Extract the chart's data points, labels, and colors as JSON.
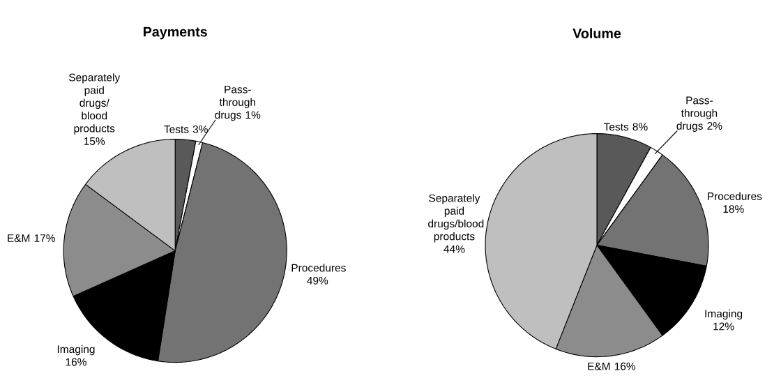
{
  "chart_data": [
    {
      "type": "pie",
      "title": "Payments",
      "categories": [
        "Tests",
        "Pass-through drugs",
        "Procedures",
        "Imaging",
        "E&M",
        "Separately paid drugs/ blood products"
      ],
      "values": [
        3,
        1,
        49,
        16,
        17,
        15
      ],
      "value_labels": [
        "3%",
        "1%",
        "49%",
        "16%",
        "17%",
        "15%"
      ],
      "colors": [
        "#595959",
        "#ffffff",
        "#737373",
        "#000000",
        "#8c8c8c",
        "#bfbfbf"
      ]
    },
    {
      "type": "pie",
      "title": "Volume",
      "categories": [
        "Tests",
        "Pass-through drugs",
        "Procedures",
        "Imaging",
        "E&M",
        "Separately paid drugs/blood products"
      ],
      "values": [
        8,
        2,
        18,
        12,
        16,
        44
      ],
      "value_labels": [
        "8%",
        "2%",
        "18%",
        "12%",
        "16%",
        "44%"
      ],
      "colors": [
        "#595959",
        "#ffffff",
        "#737373",
        "#000000",
        "#8c8c8c",
        "#bfbfbf"
      ]
    }
  ]
}
